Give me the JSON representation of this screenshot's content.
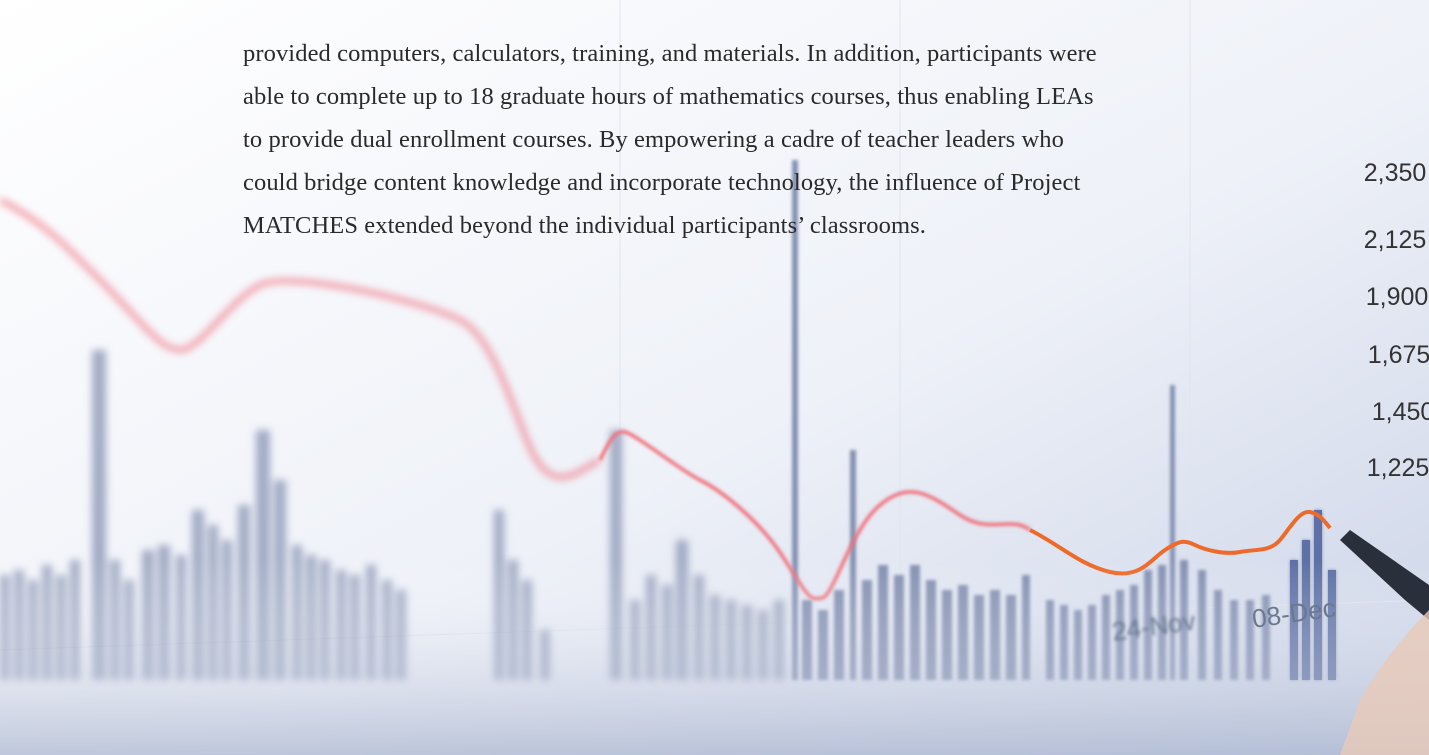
{
  "body": {
    "lines": [
      "provided computers, calculators, training, and materials. In addition, participants were",
      "able to complete up to 18 graduate hours of mathematics courses, thus enabling LEAs",
      "to provide dual enrollment courses. By empowering a cadre of teacher leaders who",
      "could bridge content knowledge and incorporate technology, the influence of Project",
      "MATCHES extended beyond the individual participants’ classrooms."
    ]
  },
  "background_photo": {
    "axis_labels": [
      "2,350",
      "2,125",
      "1,900",
      "1,675",
      "1,450",
      "1,225"
    ],
    "date_labels": [
      "24-Nov",
      "08-Dec"
    ]
  }
}
